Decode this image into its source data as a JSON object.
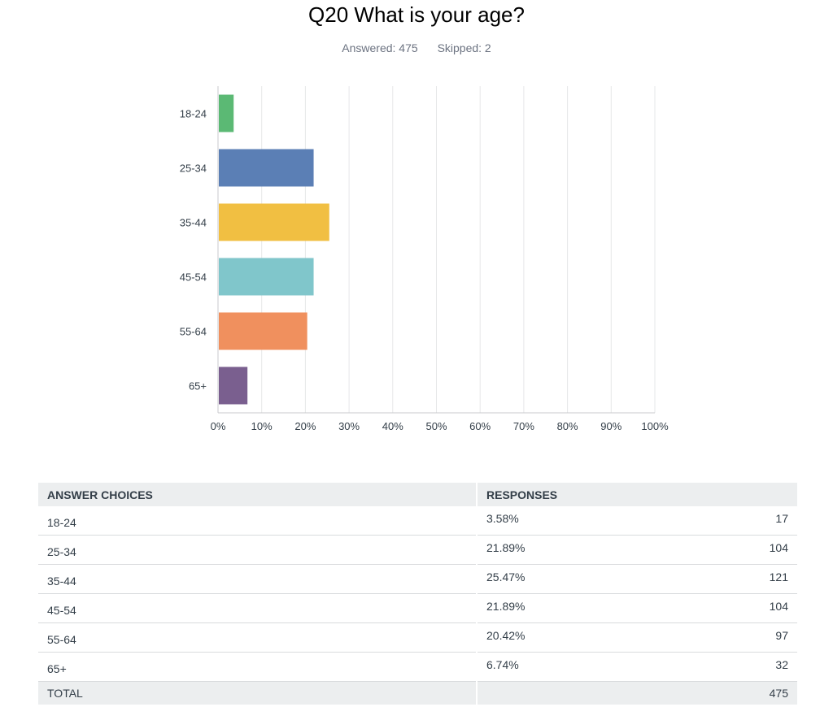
{
  "question": {
    "title": "Q20 What is your age?",
    "answered": "Answered: 475",
    "skipped": "Skipped: 2"
  },
  "chart_data": {
    "type": "bar",
    "orientation": "horizontal",
    "categories": [
      "18-24",
      "25-34",
      "35-44",
      "45-54",
      "55-64",
      "65+"
    ],
    "values": [
      3.58,
      21.89,
      25.47,
      21.89,
      20.42,
      6.74
    ],
    "colors": [
      "#5bb974",
      "#5b7fb5",
      "#f1bf42",
      "#80c6cb",
      "#f0905e",
      "#7a5f8f"
    ],
    "xlim": [
      0,
      100
    ],
    "xticks": [
      "0%",
      "10%",
      "20%",
      "30%",
      "40%",
      "50%",
      "60%",
      "70%",
      "80%",
      "90%",
      "100%"
    ],
    "grid": true
  },
  "table": {
    "headers": [
      "ANSWER CHOICES",
      "RESPONSES"
    ],
    "rows": [
      {
        "choice": "18-24",
        "percent": "3.58%",
        "count": "17"
      },
      {
        "choice": "25-34",
        "percent": "21.89%",
        "count": "104"
      },
      {
        "choice": "35-44",
        "percent": "25.47%",
        "count": "121"
      },
      {
        "choice": "45-54",
        "percent": "21.89%",
        "count": "104"
      },
      {
        "choice": "55-64",
        "percent": "20.42%",
        "count": "97"
      },
      {
        "choice": "65+",
        "percent": "6.74%",
        "count": "32"
      }
    ],
    "total_label": "TOTAL",
    "total_count": "475"
  }
}
